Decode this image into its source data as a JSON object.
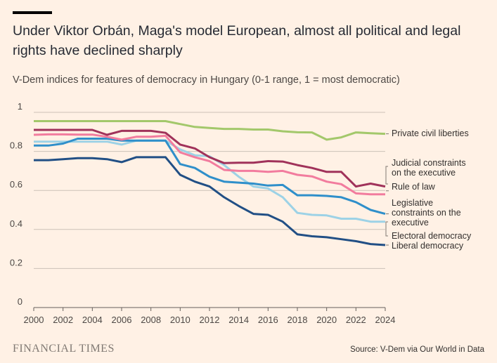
{
  "header": {
    "title": "Under Viktor Orbán, Maga's model European, almost all political and legal rights have declined sharply",
    "subtitle": "V-Dem indices for features of democracy in Hungary (0-1 range, 1 = most democratic)"
  },
  "footer": {
    "logo": "FINANCIAL TIMES",
    "source": "Source: V-Dem via Our World in Data"
  },
  "chart_data": {
    "type": "line",
    "title": "Under Viktor Orbán, Maga's model European, almost all political and legal rights have declined sharply",
    "xlabel": "",
    "ylabel": "",
    "x": [
      2000,
      2001,
      2002,
      2003,
      2004,
      2005,
      2006,
      2007,
      2008,
      2009,
      2010,
      2011,
      2012,
      2013,
      2014,
      2015,
      2016,
      2017,
      2018,
      2019,
      2020,
      2021,
      2022,
      2023,
      2024
    ],
    "xticks": [
      "2000",
      "2002",
      "2004",
      "2006",
      "2008",
      "2010",
      "2012",
      "2014",
      "2016",
      "2018",
      "2020",
      "2022",
      "2024"
    ],
    "yticks": [
      "0",
      "0.2",
      "0.4",
      "0.6",
      "0.8",
      "1"
    ],
    "ylim": [
      0,
      1
    ],
    "grid": true,
    "legend": "direct-labels-right",
    "series": [
      {
        "name": "Private civil liberties",
        "color": "#a3c86b",
        "label_lines": [
          "Private civil liberties"
        ],
        "values": [
          0.955,
          0.955,
          0.955,
          0.955,
          0.955,
          0.955,
          0.955,
          0.955,
          0.955,
          0.955,
          0.94,
          0.925,
          0.92,
          0.915,
          0.915,
          0.912,
          0.912,
          0.903,
          0.898,
          0.897,
          0.86,
          0.872,
          0.897,
          0.893,
          0.89
        ]
      },
      {
        "name": "Judicial constraints on the executive",
        "color": "#a0325a",
        "label_lines": [
          "Judicial constraints",
          "on the executive"
        ],
        "values": [
          0.91,
          0.91,
          0.91,
          0.91,
          0.91,
          0.885,
          0.905,
          0.905,
          0.905,
          0.895,
          0.835,
          0.815,
          0.77,
          0.74,
          0.742,
          0.742,
          0.75,
          0.748,
          0.73,
          0.715,
          0.695,
          0.695,
          0.62,
          0.635,
          0.62
        ]
      },
      {
        "name": "Rule of law",
        "color": "#f27c9e",
        "label_lines": [
          "Rule of law"
        ],
        "values": [
          0.885,
          0.887,
          0.887,
          0.886,
          0.886,
          0.875,
          0.86,
          0.875,
          0.875,
          0.88,
          0.795,
          0.77,
          0.75,
          0.705,
          0.7,
          0.7,
          0.695,
          0.7,
          0.68,
          0.672,
          0.645,
          0.632,
          0.585,
          0.58,
          0.58
        ]
      },
      {
        "name": "Legislative constraints on the executive",
        "color": "#2f8fca",
        "label_lines": [
          "Legislative",
          "constraints on the",
          "executive"
        ],
        "values": [
          0.83,
          0.83,
          0.84,
          0.865,
          0.865,
          0.865,
          0.855,
          0.855,
          0.855,
          0.855,
          0.735,
          0.715,
          0.67,
          0.645,
          0.64,
          0.635,
          0.625,
          0.628,
          0.575,
          0.575,
          0.572,
          0.565,
          0.54,
          0.5,
          0.48
        ]
      },
      {
        "name": "Electoral democracy",
        "color": "#9dd2e6",
        "label_lines": [
          "Electoral democracy"
        ],
        "values": [
          0.85,
          0.85,
          0.85,
          0.85,
          0.85,
          0.85,
          0.835,
          0.855,
          0.855,
          0.855,
          0.81,
          0.78,
          0.775,
          0.73,
          0.67,
          0.62,
          0.61,
          0.565,
          0.485,
          0.475,
          0.472,
          0.455,
          0.455,
          0.44,
          0.44
        ]
      },
      {
        "name": "Liberal democracy",
        "color": "#214f85",
        "label_lines": [
          "Liberal democracy"
        ],
        "values": [
          0.755,
          0.755,
          0.76,
          0.765,
          0.765,
          0.76,
          0.745,
          0.77,
          0.77,
          0.77,
          0.68,
          0.645,
          0.62,
          0.565,
          0.52,
          0.48,
          0.475,
          0.44,
          0.375,
          0.365,
          0.36,
          0.35,
          0.34,
          0.325,
          0.32
        ]
      }
    ]
  }
}
